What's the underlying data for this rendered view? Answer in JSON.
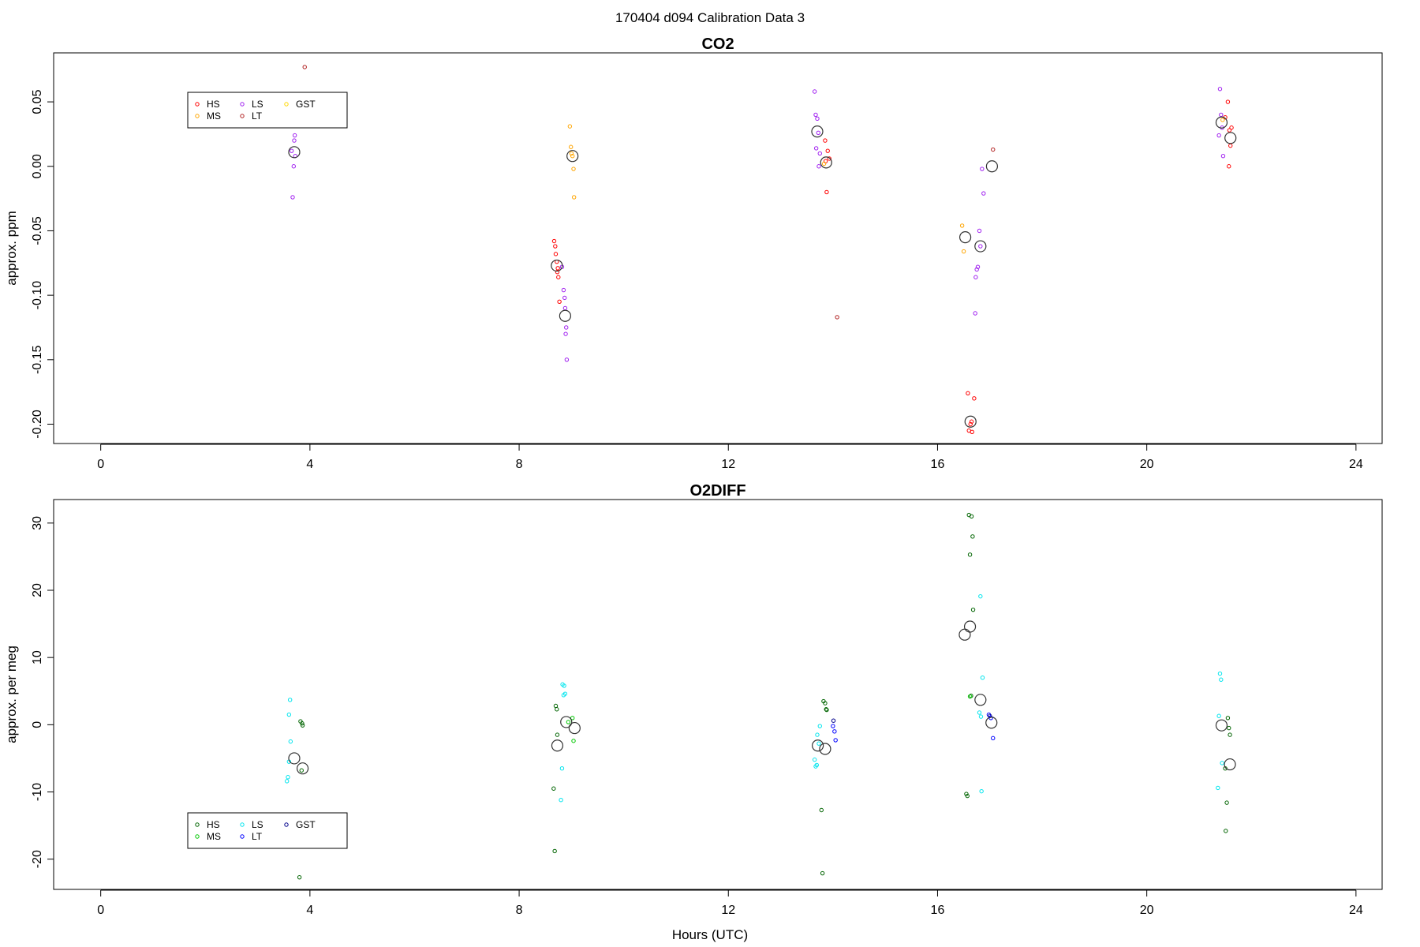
{
  "figure": {
    "title": "170404   d094   Calibration Data 3",
    "xlabel": "Hours (UTC)"
  },
  "colors": {
    "HS": "#ff0000",
    "MS": "#ffa500",
    "LS": "#a020f0",
    "LT": "#b22222",
    "GST": "#ffd700",
    "HS2": "#006400",
    "MS2": "#00c800",
    "LS2": "#00e5ee",
    "LT2": "#0000ff",
    "GST2": "#00008b",
    "mean": "#333333"
  },
  "chart_data": [
    {
      "type": "scatter",
      "title": "CO2",
      "xlabel": "",
      "ylabel": "approx. ppm",
      "xlim": [
        -0.9,
        24.5
      ],
      "ylim": [
        -0.215,
        0.088
      ],
      "xticks": [
        0,
        4,
        8,
        12,
        16,
        20,
        24
      ],
      "yticks": [
        0.05,
        0.0,
        -0.05,
        -0.1,
        -0.15,
        -0.2
      ],
      "ytick_labels": [
        "0.05",
        "0.00",
        "-0.05",
        "-0.10",
        "-0.15",
        "-0.20"
      ],
      "grid": false,
      "legend_position": "top-left",
      "legend": [
        {
          "name": "HS",
          "color": "#ff0000"
        },
        {
          "name": "MS",
          "color": "#ffa500"
        },
        {
          "name": "LS",
          "color": "#a020f0"
        },
        {
          "name": "LT",
          "color": "#b22222"
        },
        {
          "name": "GST",
          "color": "#ffd700"
        }
      ],
      "series": [
        {
          "name": "HS",
          "color": "#ff0000",
          "points": [
            [
              8.67,
              -0.058
            ],
            [
              8.69,
              -0.062
            ],
            [
              8.7,
              -0.068
            ],
            [
              8.72,
              -0.074
            ],
            [
              8.73,
              -0.082
            ],
            [
              8.75,
              -0.086
            ],
            [
              8.77,
              -0.105
            ],
            [
              8.74,
              -0.079
            ],
            [
              13.85,
              0.02
            ],
            [
              13.9,
              0.012
            ],
            [
              13.86,
              0.004
            ],
            [
              13.93,
              0.006
            ],
            [
              13.88,
              -0.02
            ],
            [
              16.58,
              -0.176
            ],
            [
              16.63,
              -0.2
            ],
            [
              16.6,
              -0.205
            ],
            [
              16.66,
              -0.206
            ],
            [
              16.7,
              -0.18
            ],
            [
              16.65,
              -0.198
            ],
            [
              21.5,
              0.038
            ],
            [
              21.55,
              0.05
            ],
            [
              21.58,
              0.028
            ],
            [
              21.6,
              0.016
            ],
            [
              21.62,
              0.03
            ],
            [
              21.57,
              0.0
            ]
          ]
        },
        {
          "name": "MS",
          "color": "#ffa500",
          "points": [
            [
              8.97,
              0.031
            ],
            [
              8.99,
              0.015
            ],
            [
              9.0,
              0.01
            ],
            [
              9.02,
              0.008
            ],
            [
              9.04,
              -0.002
            ],
            [
              9.05,
              -0.024
            ],
            [
              13.83,
              0.002
            ],
            [
              16.47,
              -0.046
            ],
            [
              16.5,
              -0.066
            ],
            [
              21.45,
              0.036
            ]
          ]
        },
        {
          "name": "LS",
          "color": "#a020f0",
          "points": [
            [
              3.65,
              0.012
            ],
            [
              3.67,
              -0.024
            ],
            [
              3.69,
              0.0
            ],
            [
              3.71,
              0.024
            ],
            [
              3.7,
              0.02
            ],
            [
              3.72,
              0.008
            ],
            [
              8.82,
              -0.078
            ],
            [
              8.85,
              -0.096
            ],
            [
              8.87,
              -0.102
            ],
            [
              8.88,
              -0.11
            ],
            [
              8.9,
              -0.125
            ],
            [
              8.91,
              -0.15
            ],
            [
              8.89,
              -0.13
            ],
            [
              13.65,
              0.058
            ],
            [
              13.67,
              0.04
            ],
            [
              13.7,
              0.037
            ],
            [
              13.72,
              0.026
            ],
            [
              13.68,
              0.014
            ],
            [
              13.75,
              0.01
            ],
            [
              13.73,
              0.0
            ],
            [
              16.73,
              -0.086
            ],
            [
              16.75,
              -0.08
            ],
            [
              16.77,
              -0.078
            ],
            [
              16.72,
              -0.114
            ],
            [
              16.8,
              -0.05
            ],
            [
              16.82,
              -0.062
            ],
            [
              16.88,
              -0.021
            ],
            [
              16.85,
              -0.002
            ],
            [
              21.4,
              0.06
            ],
            [
              21.42,
              0.04
            ],
            [
              21.44,
              0.03
            ],
            [
              21.38,
              0.024
            ],
            [
              21.46,
              0.008
            ]
          ]
        },
        {
          "name": "LT",
          "color": "#b22222",
          "points": [
            [
              3.9,
              0.077
            ],
            [
              14.08,
              -0.117
            ],
            [
              17.06,
              0.013
            ]
          ]
        },
        {
          "name": "GST",
          "color": "#ffd700",
          "points": []
        },
        {
          "name": "mean",
          "color": "#333333",
          "marker": "large-circle",
          "points": [
            [
              3.7,
              0.011
            ],
            [
              8.72,
              -0.077
            ],
            [
              8.88,
              -0.116
            ],
            [
              9.02,
              0.008
            ],
            [
              13.7,
              0.027
            ],
            [
              13.87,
              0.003
            ],
            [
              16.53,
              -0.055
            ],
            [
              16.63,
              -0.198
            ],
            [
              16.82,
              -0.062
            ],
            [
              17.04,
              0.0
            ],
            [
              21.43,
              0.034
            ],
            [
              21.6,
              0.022
            ]
          ]
        }
      ]
    },
    {
      "type": "scatter",
      "title": "O2DIFF",
      "xlabel": "Hours (UTC)",
      "ylabel": "approx. per meg",
      "xlim": [
        -0.9,
        24.5
      ],
      "ylim": [
        -24.5,
        33.5
      ],
      "xticks": [
        0,
        4,
        8,
        12,
        16,
        20,
        24
      ],
      "yticks": [
        30,
        20,
        10,
        0,
        -10,
        -20
      ],
      "ytick_labels": [
        "30",
        "20",
        "10",
        "0",
        "-10",
        "-20"
      ],
      "grid": false,
      "legend_position": "bottom-left",
      "legend": [
        {
          "name": "HS",
          "color": "#006400"
        },
        {
          "name": "MS",
          "color": "#00c800"
        },
        {
          "name": "LS",
          "color": "#00e5ee"
        },
        {
          "name": "LT",
          "color": "#0000ff"
        },
        {
          "name": "GST",
          "color": "#00008b"
        }
      ],
      "series": [
        {
          "name": "HS",
          "color": "#006400",
          "points": [
            [
              3.82,
              0.5
            ],
            [
              3.85,
              0.2
            ],
            [
              3.86,
              -0.1
            ],
            [
              3.8,
              -22.7
            ],
            [
              3.84,
              -6.8
            ],
            [
              8.66,
              -9.5
            ],
            [
              8.68,
              -18.8
            ],
            [
              8.7,
              2.8
            ],
            [
              8.72,
              2.3
            ],
            [
              8.73,
              -1.5
            ],
            [
              13.82,
              3.5
            ],
            [
              13.85,
              3.2
            ],
            [
              13.87,
              2.3
            ],
            [
              13.88,
              2.2
            ],
            [
              13.78,
              -12.7
            ],
            [
              13.8,
              -22.1
            ],
            [
              16.6,
              31.2
            ],
            [
              16.65,
              31.0
            ],
            [
              16.67,
              28.0
            ],
            [
              16.62,
              25.3
            ],
            [
              16.68,
              17.1
            ],
            [
              16.64,
              4.3
            ],
            [
              16.55,
              -10.3
            ],
            [
              16.57,
              -10.6
            ],
            [
              21.55,
              1.0
            ],
            [
              21.57,
              -0.5
            ],
            [
              21.59,
              -1.5
            ],
            [
              21.53,
              -11.6
            ],
            [
              21.51,
              -15.8
            ],
            [
              21.5,
              -6.5
            ]
          ]
        },
        {
          "name": "MS",
          "color": "#00c800",
          "points": [
            [
              9.02,
              1.0
            ],
            [
              9.04,
              -2.4
            ],
            [
              8.94,
              0.4
            ],
            [
              16.62,
              4.2
            ]
          ]
        },
        {
          "name": "LS",
          "color": "#00e5ee",
          "points": [
            [
              3.6,
              1.5
            ],
            [
              3.62,
              3.7
            ],
            [
              3.63,
              -2.5
            ],
            [
              3.58,
              -7.8
            ],
            [
              3.56,
              -8.4
            ],
            [
              3.6,
              -5.5
            ],
            [
              8.83,
              6.0
            ],
            [
              8.86,
              5.8
            ],
            [
              8.88,
              4.6
            ],
            [
              8.85,
              4.4
            ],
            [
              8.82,
              -6.5
            ],
            [
              8.8,
              -11.2
            ],
            [
              13.7,
              -1.5
            ],
            [
              13.73,
              -2.8
            ],
            [
              13.75,
              -0.2
            ],
            [
              13.65,
              -5.2
            ],
            [
              13.67,
              -6.2
            ],
            [
              13.69,
              -6.0
            ],
            [
              16.82,
              19.1
            ],
            [
              16.86,
              7.0
            ],
            [
              16.8,
              1.8
            ],
            [
              16.83,
              1.2
            ],
            [
              16.84,
              -9.9
            ],
            [
              21.4,
              7.6
            ],
            [
              21.42,
              6.7
            ],
            [
              21.38,
              1.3
            ],
            [
              21.36,
              -9.4
            ],
            [
              21.44,
              -5.7
            ]
          ]
        },
        {
          "name": "LT",
          "color": "#0000ff",
          "points": [
            [
              14.0,
              -0.2
            ],
            [
              14.03,
              -1.0
            ],
            [
              14.05,
              -2.3
            ],
            [
              16.98,
              1.5
            ],
            [
              17.02,
              1.0
            ],
            [
              17.06,
              -2.0
            ]
          ]
        },
        {
          "name": "GST",
          "color": "#00008b",
          "points": [
            [
              14.01,
              0.6
            ],
            [
              17.0,
              1.3
            ]
          ]
        },
        {
          "name": "mean",
          "color": "#333333",
          "marker": "large-circle",
          "points": [
            [
              3.7,
              -5.0
            ],
            [
              3.86,
              -6.5
            ],
            [
              8.73,
              -3.1
            ],
            [
              8.9,
              0.4
            ],
            [
              9.06,
              -0.5
            ],
            [
              13.71,
              -3.1
            ],
            [
              13.85,
              -3.6
            ],
            [
              16.52,
              13.4
            ],
            [
              16.62,
              14.6
            ],
            [
              16.82,
              3.7
            ],
            [
              17.03,
              0.3
            ],
            [
              21.43,
              -0.1
            ],
            [
              21.59,
              -5.9
            ]
          ]
        }
      ]
    }
  ]
}
